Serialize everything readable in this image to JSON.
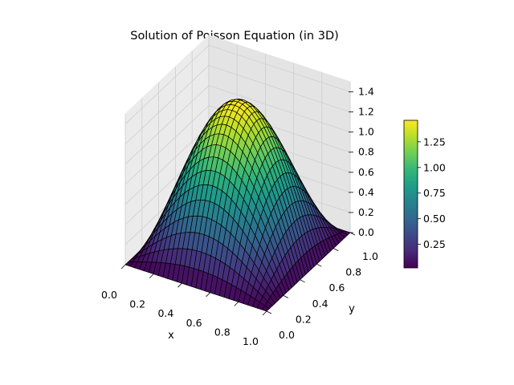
{
  "chart_data": {
    "type": "surface3d",
    "title": "Solution of Poisson Equation (in 3D)",
    "xlabel": "x",
    "ylabel": "y",
    "zlabel": "",
    "xlim": [
      0,
      1
    ],
    "ylim": [
      0,
      1
    ],
    "zlim": [
      0,
      1.46
    ],
    "function": "u(x,y) = 1.46 * sin(pi*x) * sin(pi*y)",
    "grid": true,
    "colormap": "viridis",
    "edge_color": "#000000",
    "x_ticks": [
      "0.0",
      "0.2",
      "0.4",
      "0.6",
      "0.8",
      "1.0"
    ],
    "y_ticks": [
      "0.0",
      "0.2",
      "0.4",
      "0.6",
      "0.8",
      "1.0"
    ],
    "z_ticks": [
      "0.0",
      "0.2",
      "0.4",
      "0.6",
      "0.8",
      "1.0",
      "1.2",
      "1.4"
    ],
    "colorbar": {
      "min": 0.02,
      "max": 1.46,
      "ticks": [
        "0.25",
        "0.50",
        "0.75",
        "1.00",
        "1.25"
      ],
      "tick_values": [
        0.25,
        0.5,
        0.75,
        1.0,
        1.25
      ],
      "colors": [
        "#440154",
        "#482878",
        "#3e4989",
        "#31688e",
        "#26828e",
        "#1f9e89",
        "#35b779",
        "#6ece58",
        "#b5de2b",
        "#fde725"
      ]
    }
  }
}
